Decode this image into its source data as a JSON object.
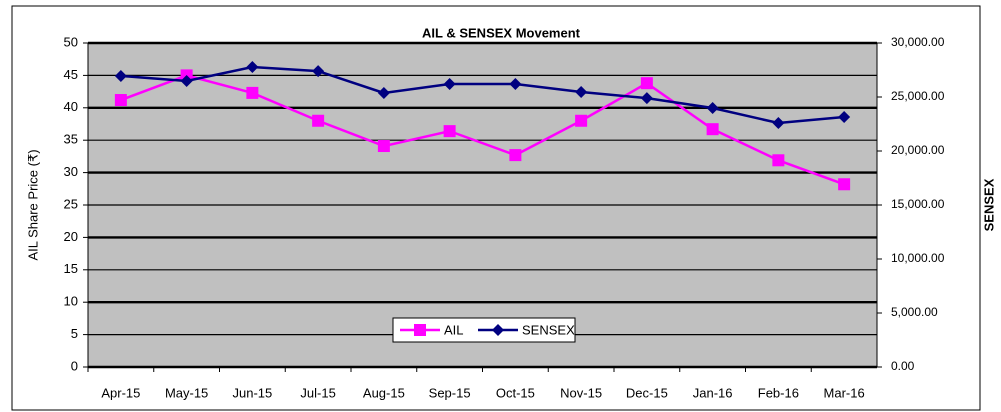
{
  "chart_data": {
    "type": "line",
    "title": "AIL & SENSEX Movement",
    "y_label": "AIL Share Price (₹)",
    "y2_label": "SENSEX",
    "categories": [
      "Apr-15",
      "May-15",
      "Jun-15",
      "Jul-15",
      "Aug-15",
      "Sep-15",
      "Oct-15",
      "Nov-15",
      "Dec-15",
      "Jan-16",
      "Feb-16",
      "Mar-16"
    ],
    "series": [
      {
        "name": "AIL",
        "color": "#ff00ff",
        "marker": "square",
        "values": [
          41.2,
          45,
          42.3,
          38,
          34.1,
          36.4,
          32.7,
          38,
          43.8,
          36.7,
          31.9,
          28.2
        ]
      },
      {
        "name": "SENSEX",
        "color": "#000080",
        "marker": "diamond",
        "axis": "y2",
        "values": [
          26950,
          26480,
          27780,
          27400,
          25370,
          26200,
          26200,
          25460,
          24900,
          23980,
          22590,
          23150
        ]
      }
    ],
    "ylim": [
      0,
      50
    ],
    "yticks": [
      0,
      5,
      10,
      15,
      20,
      25,
      30,
      35,
      40,
      45,
      50
    ],
    "y2lim": [
      0,
      30000
    ],
    "y2ticks": [
      {
        "value": 0,
        "label": "0.00"
      },
      {
        "value": 5000,
        "label": "5,000.00"
      },
      {
        "value": 10000,
        "label": "10,000.00"
      },
      {
        "value": 15000,
        "label": "15,000.00"
      },
      {
        "value": 20000,
        "label": "20,000.00"
      },
      {
        "value": 25000,
        "label": "25,000.00"
      },
      {
        "value": 30000,
        "label": "30,000.00"
      }
    ],
    "grid": true,
    "legend": "bottom",
    "background": "#c0c0c0"
  }
}
